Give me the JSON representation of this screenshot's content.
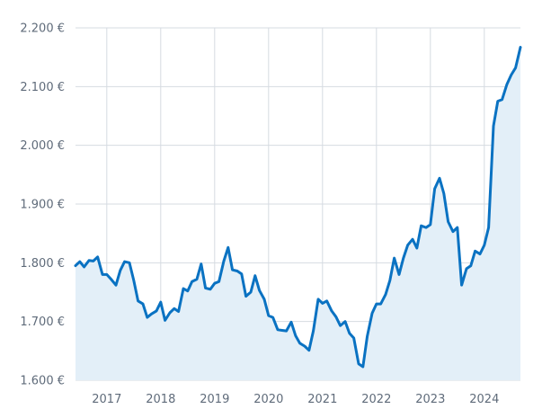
{
  "colors": {
    "line": "#0a72c2",
    "area_fill": "#e3eff8",
    "grid": "#d6dbe1",
    "tick_text": "#5f6b7a"
  },
  "chart_data": {
    "type": "area",
    "title": "",
    "xlabel": "",
    "ylabel": "",
    "grid": true,
    "legend": "none",
    "xlim": [
      2016.42,
      2024.67
    ],
    "ylim": [
      1600,
      2200
    ],
    "y_ticks": [
      {
        "value": 1600,
        "label": "1.600 €"
      },
      {
        "value": 1700,
        "label": "1.700 €"
      },
      {
        "value": 1800,
        "label": "1.800 €"
      },
      {
        "value": 1900,
        "label": "1.900 €"
      },
      {
        "value": 2000,
        "label": "2.000 €"
      },
      {
        "value": 2100,
        "label": "2.100 €"
      },
      {
        "value": 2200,
        "label": "2.200 €"
      }
    ],
    "x_ticks": [
      {
        "value": 2017,
        "label": "2017"
      },
      {
        "value": 2018,
        "label": "2018"
      },
      {
        "value": 2019,
        "label": "2019"
      },
      {
        "value": 2020,
        "label": "2020"
      },
      {
        "value": 2021,
        "label": "2021"
      },
      {
        "value": 2022,
        "label": "2022"
      },
      {
        "value": 2023,
        "label": "2023"
      },
      {
        "value": 2024,
        "label": "2024"
      }
    ],
    "series": [
      {
        "x": [
          2016.42,
          2016.5,
          2016.58,
          2016.67,
          2016.75,
          2016.83,
          2016.92,
          2017.0,
          2017.08,
          2017.17,
          2017.25,
          2017.33,
          2017.42,
          2017.5,
          2017.58,
          2017.67,
          2017.75,
          2017.83,
          2017.92,
          2018.0,
          2018.08,
          2018.17,
          2018.25,
          2018.33,
          2018.42,
          2018.5,
          2018.58,
          2018.67,
          2018.75,
          2018.83,
          2018.92,
          2019.0,
          2019.08,
          2019.17,
          2019.25,
          2019.33,
          2019.42,
          2019.5,
          2019.58,
          2019.67,
          2019.75,
          2019.83,
          2019.92,
          2020.0,
          2020.08,
          2020.17,
          2020.25,
          2020.33,
          2020.42,
          2020.5,
          2020.58,
          2020.67,
          2020.75,
          2020.83,
          2020.92,
          2021.0,
          2021.08,
          2021.17,
          2021.25,
          2021.33,
          2021.42,
          2021.5,
          2021.58,
          2021.67,
          2021.75,
          2021.83,
          2021.92,
          2022.0,
          2022.08,
          2022.17,
          2022.25,
          2022.33,
          2022.42,
          2022.5,
          2022.58,
          2022.67,
          2022.75,
          2022.83,
          2022.92,
          2023.0,
          2023.08,
          2023.17,
          2023.25,
          2023.33,
          2023.42,
          2023.5,
          2023.58,
          2023.67,
          2023.75,
          2023.83,
          2023.92,
          2024.0,
          2024.08,
          2024.17,
          2024.25,
          2024.33,
          2024.42,
          2024.5,
          2024.58,
          2024.67
        ],
        "y": [
          1795,
          1802,
          1793,
          1804,
          1803,
          1810,
          1780,
          1780,
          1772,
          1762,
          1787,
          1802,
          1800,
          1770,
          1735,
          1730,
          1707,
          1713,
          1718,
          1733,
          1702,
          1715,
          1722,
          1717,
          1756,
          1752,
          1768,
          1772,
          1798,
          1757,
          1755,
          1765,
          1768,
          1803,
          1826,
          1788,
          1786,
          1781,
          1743,
          1750,
          1778,
          1753,
          1738,
          1710,
          1707,
          1686,
          1685,
          1684,
          1699,
          1676,
          1663,
          1658,
          1651,
          1684,
          1738,
          1731,
          1735,
          1718,
          1708,
          1693,
          1700,
          1680,
          1672,
          1628,
          1623,
          1675,
          1714,
          1730,
          1730,
          1746,
          1770,
          1808,
          1780,
          1808,
          1830,
          1840,
          1825,
          1863,
          1860,
          1865,
          1926,
          1944,
          1918,
          1870,
          1853,
          1860,
          1762,
          1790,
          1795,
          1820,
          1815,
          1830,
          1860,
          2033,
          2075,
          2078,
          2104,
          2120,
          2132,
          2167
        ]
      }
    ]
  }
}
